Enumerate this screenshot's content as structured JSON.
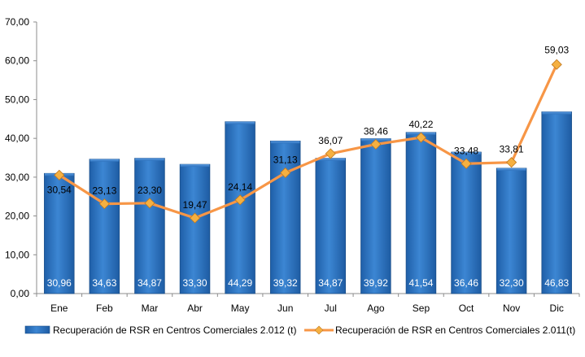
{
  "chart_data": {
    "type": "bar",
    "categories": [
      "Ene",
      "Feb",
      "Mar",
      "Abr",
      "May",
      "Jun",
      "Jul",
      "Ago",
      "Sep",
      "Oct",
      "Nov",
      "Dic"
    ],
    "series": [
      {
        "name": "Recuperación de RSR en Centros Comerciales 2.012 (t)",
        "type": "bar",
        "values": [
          30.96,
          34.63,
          34.87,
          33.3,
          44.29,
          39.32,
          34.87,
          39.92,
          41.54,
          36.46,
          32.3,
          46.83
        ],
        "labels": [
          "30,96",
          "34,63",
          "34,87",
          "33,30",
          "44,29",
          "39,32",
          "34,87",
          "39,92",
          "41,54",
          "36,46",
          "32,30",
          "46,83"
        ],
        "color": "#2E74C0"
      },
      {
        "name": "Recuperación de RSR en Centros Comerciales 2.011(t)",
        "type": "line",
        "values": [
          30.54,
          23.13,
          23.3,
          19.47,
          24.14,
          31.13,
          36.07,
          38.46,
          40.22,
          33.48,
          33.81,
          59.03
        ],
        "labels": [
          "30,54",
          "23,13",
          "23,30",
          "19,47",
          "24,14",
          "31,13",
          "36,07",
          "38,46",
          "40,22",
          "33,48",
          "33,81",
          "59,03"
        ],
        "color": "#F79646",
        "marker_color": "#F5B041"
      }
    ],
    "ylim": [
      0,
      70
    ],
    "yticks": [
      0,
      10,
      20,
      30,
      40,
      50,
      60,
      70
    ],
    "ytick_labels": [
      "0,00",
      "10,00",
      "20,00",
      "30,00",
      "40,00",
      "50,00",
      "60,00",
      "70,00"
    ],
    "grid": false,
    "legend_position": "bottom",
    "title": "",
    "xlabel": "",
    "ylabel": ""
  }
}
